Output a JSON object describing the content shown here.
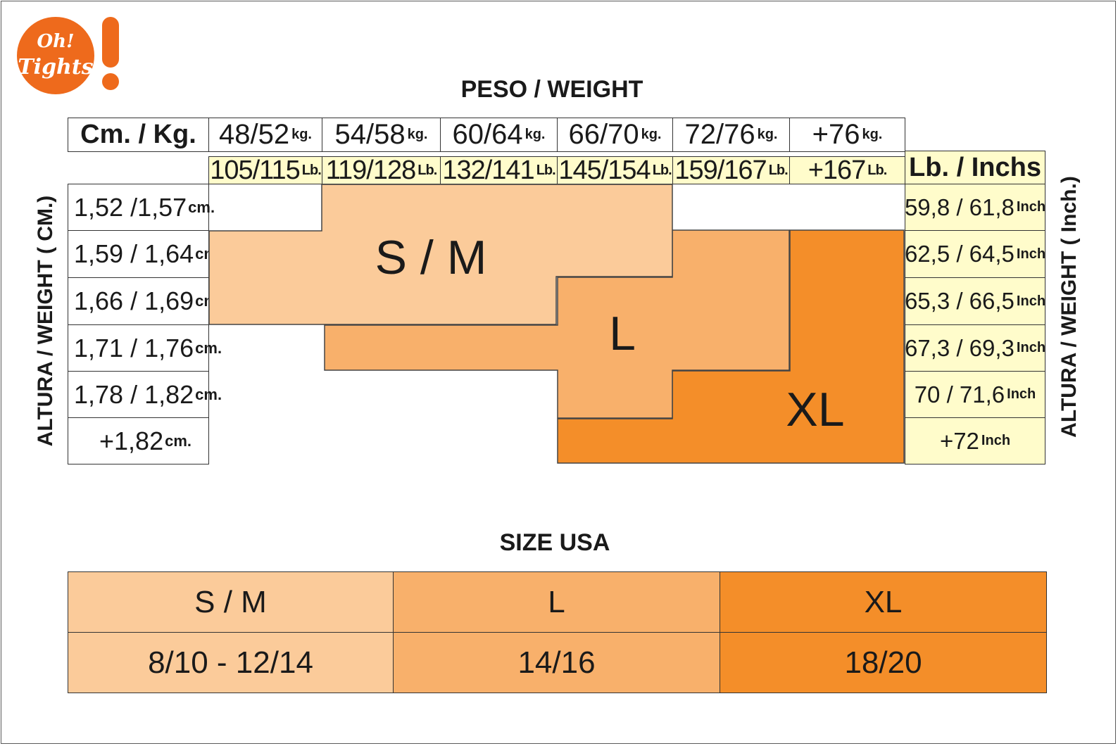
{
  "logo": {
    "line1": "Oh!",
    "line2": "Tights",
    "color": "#ee6a1c"
  },
  "chart_title": "PESO / WEIGHT",
  "corner_label": "Cm. / Kg.",
  "lb_inch_label": "Lb. / Inchs",
  "weight_kg": [
    {
      "value": "48/52",
      "unit": "kg."
    },
    {
      "value": "54/58",
      "unit": "kg."
    },
    {
      "value": "60/64",
      "unit": "kg."
    },
    {
      "value": "66/70",
      "unit": "kg."
    },
    {
      "value": "72/76",
      "unit": "kg."
    },
    {
      "value": "+76",
      "unit": "kg."
    }
  ],
  "weight_lb": [
    {
      "value": "105/115",
      "unit": "Lb."
    },
    {
      "value": "119/128",
      "unit": "Lb."
    },
    {
      "value": "132/141",
      "unit": "Lb."
    },
    {
      "value": "145/154",
      "unit": "Lb."
    },
    {
      "value": "159/167",
      "unit": "Lb."
    },
    {
      "value": "+167",
      "unit": "Lb."
    }
  ],
  "height_cm": [
    {
      "value": "1,52 /1,57",
      "unit": "cm."
    },
    {
      "value": "1,59 / 1,64",
      "unit": "cm."
    },
    {
      "value": "1,66 / 1,69",
      "unit": "cm."
    },
    {
      "value": "1,71 / 1,76",
      "unit": "cm."
    },
    {
      "value": "1,78 / 1,82",
      "unit": "cm."
    },
    {
      "value": "+1,82",
      "unit": "cm."
    }
  ],
  "height_inch": [
    {
      "value": "59,8 / 61,8",
      "unit": "Inch"
    },
    {
      "value": "62,5 / 64,5",
      "unit": "Inch"
    },
    {
      "value": "65,3 / 66,5",
      "unit": "Inch"
    },
    {
      "value": "67,3 / 69,3",
      "unit": "Inch"
    },
    {
      "value": "70 / 71,6",
      "unit": "Inch"
    },
    {
      "value": "+72",
      "unit": "Inch"
    }
  ],
  "left_axis_label": "ALTURA / WEIGHT  ( CM.)",
  "right_axis_label": "ALTURA / WEIGHT  ( Inch.)",
  "size_regions": [
    {
      "label": "S / M",
      "color": "#fbcb9a"
    },
    {
      "label": "L",
      "color": "#f8b06b"
    },
    {
      "label": "XL",
      "color": "#f48e29"
    }
  ],
  "usa_title": "SIZE  USA",
  "usa_table": [
    {
      "size": "S / M",
      "us": "8/10 - 12/14",
      "color": "#fbcb9a"
    },
    {
      "size": "L",
      "us": "14/16",
      "color": "#f8b06b"
    },
    {
      "size": "XL",
      "us": "18/20",
      "color": "#f48e29"
    }
  ]
}
